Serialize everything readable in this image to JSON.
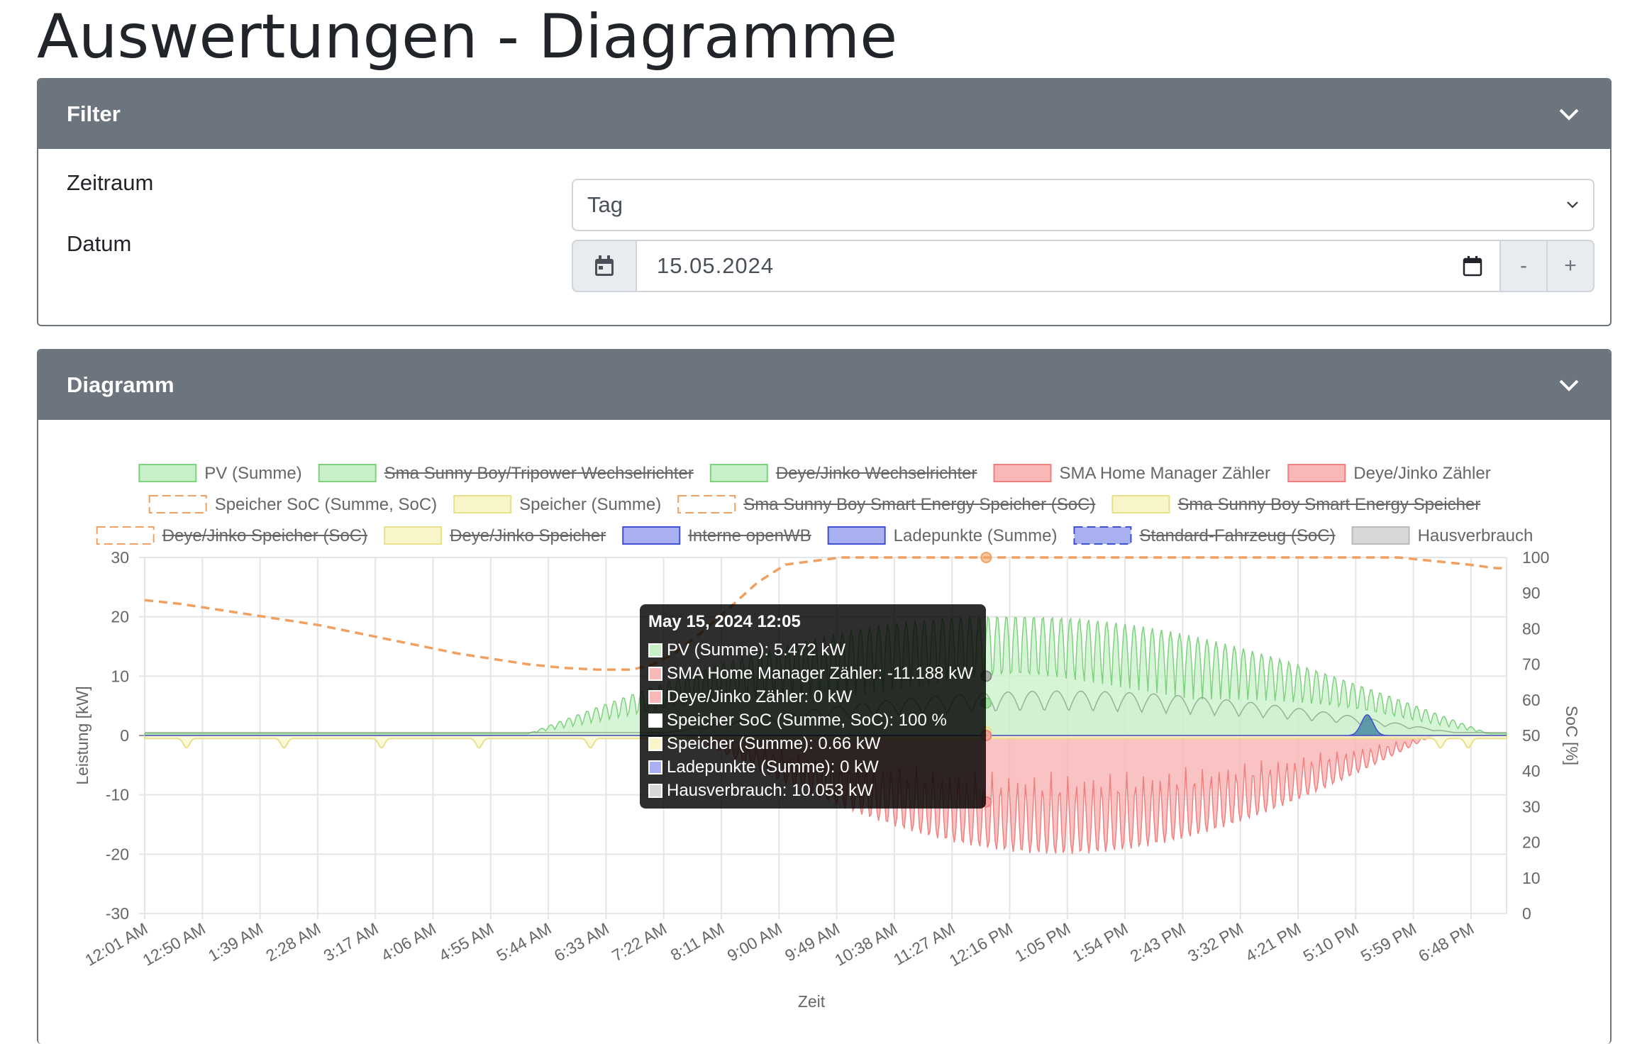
{
  "page": {
    "title": "Auswertungen - Diagramme"
  },
  "filter": {
    "header": "Filter",
    "zeitraum_label": "Zeitraum",
    "zeitraum_value": "Tag",
    "datum_label": "Datum",
    "datum_value": "15.05.2024",
    "minus_label": "-",
    "plus_label": "+"
  },
  "diagram": {
    "header": "Diagramm"
  },
  "colors": {
    "pv": "#7fd17f",
    "pv_fill": "#c8f0c8",
    "counter": "#f08080",
    "counter_fill": "#f8b8b8",
    "soc": "#f0a060",
    "storage": "#e8e08a",
    "storage_fill": "#f8f6c8",
    "charge": "#4050d0",
    "charge_fill": "#a8b0f0",
    "house": "#bbbbbb",
    "house_fill": "#d8d8d8"
  },
  "chart_data": {
    "type": "line",
    "legend_position": "top",
    "grid": true,
    "legend": [
      {
        "label": "PV (Summe)",
        "hidden": false,
        "kind": "pv"
      },
      {
        "label": "Sma Sunny Boy/Tripower Wechselrichter",
        "hidden": true,
        "kind": "pv"
      },
      {
        "label": "Deye/Jinko Wechselrichter",
        "hidden": true,
        "kind": "pv"
      },
      {
        "label": "SMA Home Manager Zähler",
        "hidden": false,
        "kind": "counter"
      },
      {
        "label": "Deye/Jinko Zähler",
        "hidden": false,
        "kind": "counter"
      },
      {
        "label": "Speicher SoC (Summe, SoC)",
        "hidden": false,
        "kind": "soc"
      },
      {
        "label": "Speicher (Summe)",
        "hidden": false,
        "kind": "storage"
      },
      {
        "label": "Sma Sunny Boy Smart Energy Speicher (SoC)",
        "hidden": true,
        "kind": "soc"
      },
      {
        "label": "Sma Sunny Boy Smart Energy Speicher",
        "hidden": true,
        "kind": "storage"
      },
      {
        "label": "Deye/Jinko Speicher (SoC)",
        "hidden": true,
        "kind": "soc"
      },
      {
        "label": "Deye/Jinko Speicher",
        "hidden": true,
        "kind": "storage"
      },
      {
        "label": "Interne openWB",
        "hidden": true,
        "kind": "charge"
      },
      {
        "label": "Ladepunkte (Summe)",
        "hidden": false,
        "kind": "charge"
      },
      {
        "label": "Standard-Fahrzeug (SoC)",
        "hidden": true,
        "kind": "chargesoc"
      },
      {
        "label": "Hausverbrauch",
        "hidden": false,
        "kind": "house"
      }
    ],
    "x_ticks": [
      "12:01 AM",
      "12:50 AM",
      "1:39 AM",
      "2:28 AM",
      "3:17 AM",
      "4:06 AM",
      "4:55 AM",
      "5:44 AM",
      "6:33 AM",
      "7:22 AM",
      "8:11 AM",
      "9:00 AM",
      "9:49 AM",
      "10:38 AM",
      "11:27 AM",
      "12:16 PM",
      "1:05 PM",
      "1:54 PM",
      "2:43 PM",
      "3:32 PM",
      "4:21 PM",
      "5:10 PM",
      "5:59 PM",
      "6:48 PM"
    ],
    "xlabel": "Zeit",
    "ylabel_left": "Leistung [kW]",
    "ylabel_right": "SoC [%]",
    "ylim_left": [
      -30,
      30
    ],
    "y_ticks_left": [
      30,
      20,
      10,
      0,
      -10,
      -20,
      -30
    ],
    "ylim_right": [
      0,
      100
    ],
    "y_ticks_right": [
      100,
      90,
      80,
      70,
      60,
      50,
      40,
      30,
      20,
      10,
      0
    ],
    "soc_series": {
      "name": "Speicher SoC (Summe, SoC)",
      "hours": [
        0,
        0.5,
        1,
        1.5,
        2,
        2.5,
        3,
        3.5,
        4,
        4.5,
        5,
        5.5,
        6,
        6.5,
        7,
        7.3,
        7.6,
        8,
        8.4,
        8.8,
        9.2,
        10,
        12,
        14,
        16,
        17.5,
        18,
        18.5,
        19,
        19.4,
        19.55
      ],
      "values": [
        88,
        87,
        85.5,
        84,
        82.5,
        81,
        79,
        77,
        75,
        73,
        71.5,
        70,
        69,
        68.5,
        68.5,
        70,
        73,
        79,
        86,
        93,
        98,
        100,
        100,
        100,
        100,
        100,
        100,
        99,
        98,
        97,
        97
      ]
    },
    "tooltip": {
      "title": "May 15, 2024 12:05",
      "rows": [
        {
          "label": "PV (Summe): 5.472 kW",
          "kind": "pv"
        },
        {
          "label": "SMA Home Manager Zähler: -11.188 kW",
          "kind": "counter"
        },
        {
          "label": "Deye/Jinko Zähler: 0 kW",
          "kind": "counter"
        },
        {
          "label": "Speicher SoC (Summe, SoC): 100 %",
          "kind": "soc"
        },
        {
          "label": "Speicher (Summe): 0.66 kW",
          "kind": "storage"
        },
        {
          "label": "Ladepunkte (Summe): 0 kW",
          "kind": "charge"
        },
        {
          "label": "Hausverbrauch: 10.053 kW",
          "kind": "house"
        }
      ]
    }
  }
}
